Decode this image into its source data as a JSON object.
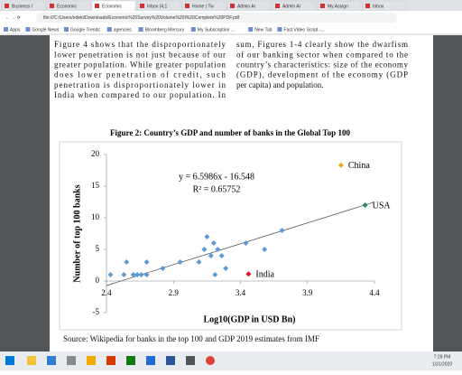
{
  "browser": {
    "tabs": [
      "Business I",
      "Economic",
      "Economic",
      "Inbox (4,1",
      "Home | Tw",
      "Admin Ar",
      "Admin Ar",
      "My Assign",
      "Inbox"
    ],
    "url": "file:///C:/Users/edeki/Downloads/Economic%20Survey%20Volume%20I%20Complete%20PDF.pdf",
    "bookmarks": [
      "Apps",
      "Google News",
      "Google Trends",
      "agencies",
      "Bloomberg Mercury",
      "My Subscription ...",
      "New Tab",
      "Fast Video Script -..."
    ]
  },
  "document": {
    "left_lines": [
      "Figure 4 shows that the disproportionately",
      "lower penetration is not just because of our",
      "greater population. While greater population",
      "does lower penetration of credit, such",
      "penetration is disproportionately lower in",
      "India when compared to our population. In"
    ],
    "right_lines": [
      "sum, Figures 1-4 clearly show the dwarfism",
      "of our banking sector when compared to the",
      "country’s characteristics: size of the economy",
      "(GDP), development of the economy (GDP",
      "per capita) and population."
    ],
    "source": "Source: Wikipedia for banks in the top 100 and GDP 2019 estimates from IMF"
  },
  "chart_data": {
    "type": "scatter",
    "title": "Figure 2: Country’s GDP and number of banks in the Global Top 100",
    "x_label": "Log10(GDP in USD Bn)",
    "y_label": "Number of top 100 banks",
    "equation": "y = 6.5986x - 16.548",
    "r_squared": "R² = 0.65752",
    "trendline": {
      "slope": 6.5986,
      "intercept": -16.548,
      "color": "#404040"
    },
    "xlim": [
      2.4,
      4.4
    ],
    "xticks": [
      2.4,
      2.9,
      3.4,
      3.9,
      4.4
    ],
    "ylim": [
      -5,
      20
    ],
    "yticks": [
      -5,
      0,
      5,
      10,
      15,
      20
    ],
    "series": [
      {
        "color": "#5b9bd5",
        "x": [
          2.43,
          2.53,
          2.55,
          2.6,
          2.63,
          2.66,
          2.7,
          2.7,
          2.82,
          2.95,
          3.09,
          3.13,
          3.15,
          3.18,
          3.2,
          3.23,
          3.21,
          3.26,
          3.29,
          3.44,
          3.58,
          3.71
        ],
        "values": [
          1,
          1,
          3,
          1,
          1,
          1,
          3,
          1,
          2,
          3,
          3,
          5,
          7,
          4,
          6,
          5,
          1,
          4,
          2,
          6,
          5,
          8
        ]
      },
      {
        "name": "China",
        "color": "#e6a817",
        "x": [
          4.15
        ],
        "values": [
          18.3
        ]
      },
      {
        "name": "USA",
        "color": "#1e8c5a",
        "x": [
          4.33
        ],
        "values": [
          12
        ]
      },
      {
        "name": "India",
        "color": "#e0101e",
        "x": [
          3.46
        ],
        "values": [
          1.1
        ]
      }
    ]
  },
  "taskbar": {
    "time": "7:29 PM",
    "date": "1/31/2020"
  }
}
